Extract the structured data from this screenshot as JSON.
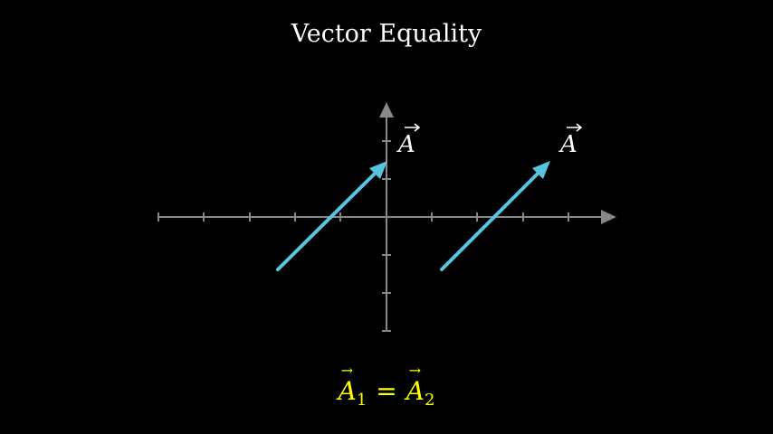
{
  "title": "Vector Equality",
  "colors": {
    "background": "#000000",
    "axis": "#888888",
    "vector": "#58c4dd",
    "label": "#ffffff",
    "equation": "#ffff00"
  },
  "vectors": [
    {
      "name": "A",
      "label": "A"
    },
    {
      "name": "A",
      "label": "A"
    }
  ],
  "equation": {
    "left_symbol": "A",
    "left_subscript": "1",
    "operator": "=",
    "right_symbol": "A",
    "right_subscript": "2"
  }
}
